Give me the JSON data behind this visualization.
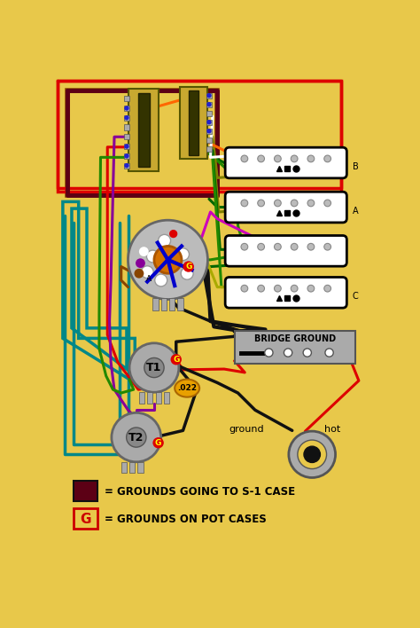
{
  "bg_color": "#E8C84A",
  "legend1_text": "= GROUNDS GOING TO S-1 CASE",
  "legend2_text": "= GROUNDS ON POT CASES",
  "legend1_color": "#5C0015",
  "legend2_border": "#CC0000",
  "legend2_letter": "G",
  "legend2_letter_color": "#CC0000",
  "colors": {
    "red": "#DD0000",
    "green": "#228800",
    "dkgreen": "#006600",
    "black": "#111111",
    "brown": "#884400",
    "orange": "#FF6600",
    "yellow_green": "#AAAA00",
    "teal": "#008888",
    "purple": "#880099",
    "magenta": "#CC00BB",
    "white": "#FFFFFF",
    "maroon": "#5C0015",
    "blue": "#0000CC",
    "gray_lt": "#CCCCCC",
    "gray": "#AAAAAA",
    "gray_dk": "#888888",
    "gold": "#C8A830",
    "orange_amber": "#D47000"
  }
}
